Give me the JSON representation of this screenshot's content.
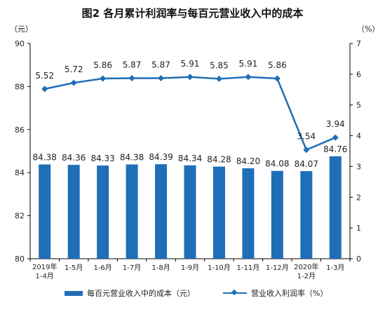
{
  "title": "图2 各月累计利润率与每百元营业收入中的成本",
  "units": {
    "left": "（元）",
    "right": "（%）"
  },
  "colors": {
    "series": "#1f6eb8",
    "axis": "#000000"
  },
  "chart_data": {
    "type": "bar+line",
    "categories": [
      [
        "2019年",
        "1-4月"
      ],
      [
        "1-5月"
      ],
      [
        "1-6月"
      ],
      [
        "1-7月"
      ],
      [
        "1-8月"
      ],
      [
        "1-9月"
      ],
      [
        "1-10月"
      ],
      [
        "1-11月"
      ],
      [
        "1-12月"
      ],
      [
        "2020年",
        "1-2月"
      ],
      [
        "1-3月"
      ]
    ],
    "yLeft": {
      "min": 80,
      "max": 90,
      "ticks": [
        80,
        82,
        84,
        86,
        88,
        90
      ]
    },
    "yRight": {
      "min": 0,
      "max": 7,
      "ticks": [
        0,
        1,
        2,
        3,
        4,
        5,
        6,
        7
      ]
    },
    "series": [
      {
        "name": "每百元营业收入中的成本（元）",
        "type": "bar",
        "axis": "left",
        "values": [
          84.38,
          84.36,
          84.33,
          84.38,
          84.39,
          84.34,
          84.28,
          84.2,
          84.08,
          84.07,
          84.76
        ],
        "labels": [
          "84.38",
          "84.36",
          "84.33",
          "84.38",
          "84.39",
          "84.34",
          "84.28",
          "84.20",
          "84.08",
          "84.07",
          "84.76"
        ]
      },
      {
        "name": "营业收入利润率（%）",
        "type": "line",
        "axis": "right",
        "values": [
          5.52,
          5.72,
          5.86,
          5.87,
          5.87,
          5.91,
          5.85,
          5.91,
          5.86,
          3.54,
          3.94
        ],
        "labels": [
          "5.52",
          "5.72",
          "5.86",
          "5.87",
          "5.87",
          "5.91",
          "5.85",
          "5.91",
          "5.86",
          "3.54",
          "3.94"
        ]
      }
    ],
    "legend_position": "bottom"
  }
}
